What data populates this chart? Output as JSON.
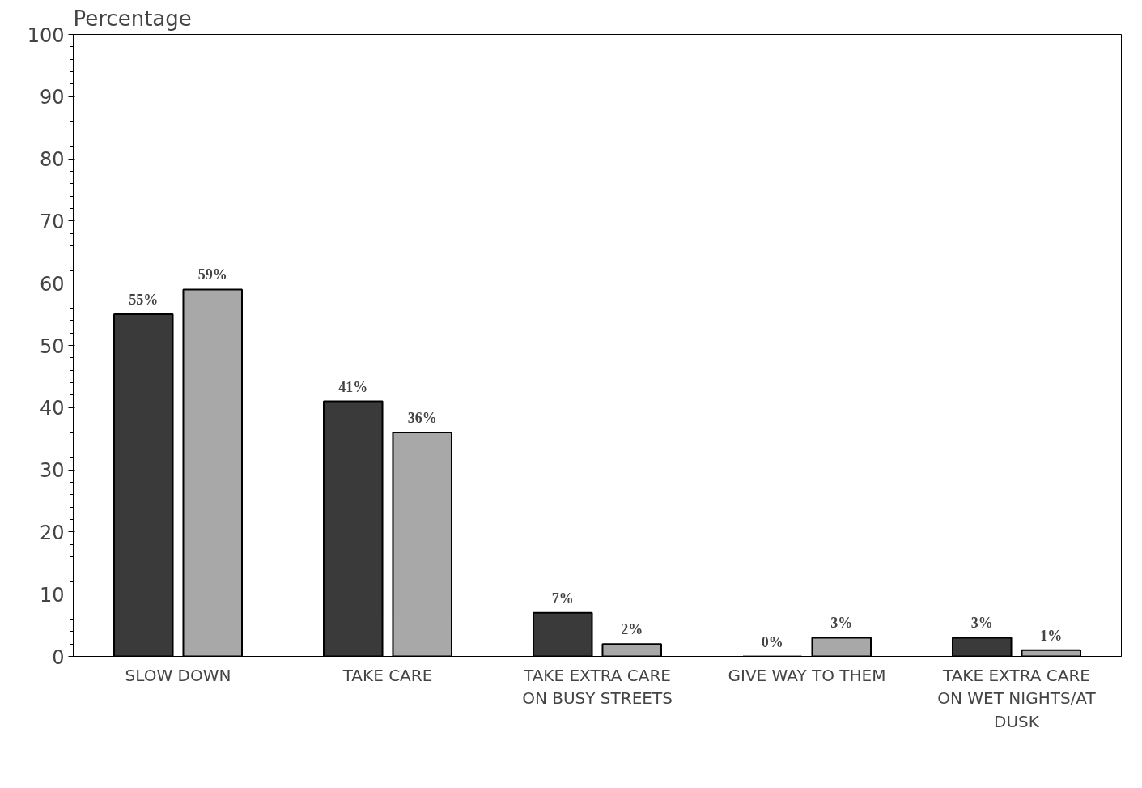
{
  "chart_data": {
    "type": "bar",
    "ylabel": "Percentage",
    "categories": [
      "SLOW DOWN",
      "TAKE CARE",
      "TAKE EXTRA CARE ON BUSY STREETS",
      "GIVE WAY TO THEM",
      "TAKE EXTRA CARE ON WET NIGHTS/AT DUSK"
    ],
    "series": [
      {
        "color": "#3a3a3a",
        "values": [
          55,
          41,
          7,
          0,
          3
        ],
        "value_labels": [
          "55%",
          "41%",
          "7%",
          "0%",
          "3%"
        ]
      },
      {
        "color": "#a8a8a8",
        "values": [
          59,
          36,
          2,
          3,
          1
        ],
        "value_labels": [
          "59%",
          "36%",
          "2%",
          "3%",
          "1%"
        ]
      }
    ],
    "ylim": [
      0,
      100
    ],
    "yticks": [
      0,
      10,
      20,
      30,
      40,
      50,
      60,
      70,
      80,
      90,
      100
    ],
    "grid": false
  }
}
